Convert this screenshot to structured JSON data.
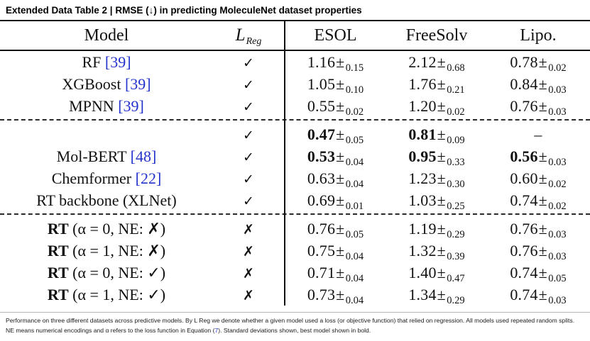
{
  "title": "Extended Data Table 2 | RMSE (↓) in predicting MoleculeNet dataset properties",
  "pm": "±",
  "link_color": "#2433cc",
  "table": {
    "headers": {
      "model": "Model",
      "reg_main": "L",
      "reg_sub": "Reg",
      "esol": "ESOL",
      "freesolv": "FreeSolv",
      "lipo": "Lipo."
    },
    "rows": [
      {
        "model": {
          "bold": "",
          "text": "RF ",
          "cite": "[39]"
        },
        "reg": "✓",
        "cells": [
          {
            "val": "1.16",
            "sub": "0.15",
            "bold": false
          },
          {
            "val": "2.12",
            "sub": "0.68",
            "bold": false
          },
          {
            "val": "0.78",
            "sub": "0.02",
            "bold": false
          }
        ]
      },
      {
        "model": {
          "bold": "",
          "text": "XGBoost ",
          "cite": "[39]"
        },
        "reg": "✓",
        "cells": [
          {
            "val": "1.05",
            "sub": "0.10",
            "bold": false
          },
          {
            "val": "1.76",
            "sub": "0.21",
            "bold": false
          },
          {
            "val": "0.84",
            "sub": "0.03",
            "bold": false
          }
        ]
      },
      {
        "model": {
          "bold": "",
          "text": "MPNN ",
          "cite": "[39]"
        },
        "reg": "✓",
        "group_end": true,
        "cells": [
          {
            "val": "0.55",
            "sub": "0.02",
            "bold": false
          },
          {
            "val": "1.20",
            "sub": "0.02",
            "bold": false
          },
          {
            "val": "0.76",
            "sub": "0.03",
            "bold": false
          }
        ]
      },
      {
        "model": {
          "bold": "",
          "text": "",
          "cite": ""
        },
        "reg": "✓",
        "cells": [
          {
            "val": "0.47",
            "sub": "0.05",
            "bold": true
          },
          {
            "val": "0.81",
            "sub": "0.09",
            "bold": true
          },
          {
            "val": "–",
            "sub": "",
            "bold": false
          }
        ]
      },
      {
        "model": {
          "bold": "",
          "text": "Mol-BERT ",
          "cite": "[48]"
        },
        "reg": "✓",
        "cells": [
          {
            "val": "0.53",
            "sub": "0.04",
            "bold": true
          },
          {
            "val": "0.95",
            "sub": "0.33",
            "bold": true
          },
          {
            "val": "0.56",
            "sub": "0.03",
            "bold": true
          }
        ]
      },
      {
        "model": {
          "bold": "",
          "text": "Chemformer ",
          "cite": "[22]"
        },
        "reg": "✓",
        "cells": [
          {
            "val": "0.63",
            "sub": "0.04",
            "bold": false
          },
          {
            "val": "1.23",
            "sub": "0.30",
            "bold": false
          },
          {
            "val": "0.60",
            "sub": "0.02",
            "bold": false
          }
        ]
      },
      {
        "model": {
          "bold": "",
          "text": "RT backbone (XLNet)",
          "cite": ""
        },
        "reg": "✓",
        "group_end": true,
        "cells": [
          {
            "val": "0.69",
            "sub": "0.01",
            "bold": false
          },
          {
            "val": "1.03",
            "sub": "0.25",
            "bold": false
          },
          {
            "val": "0.74",
            "sub": "0.02",
            "bold": false
          }
        ]
      },
      {
        "model": {
          "bold": "RT",
          "text": " (α = 0, NE: ✗)",
          "cite": ""
        },
        "reg": "✗",
        "cells": [
          {
            "val": "0.76",
            "sub": "0.05",
            "bold": false
          },
          {
            "val": "1.19",
            "sub": "0.29",
            "bold": false
          },
          {
            "val": "0.76",
            "sub": "0.03",
            "bold": false
          }
        ]
      },
      {
        "model": {
          "bold": "RT",
          "text": " (α = 1, NE: ✗)",
          "cite": ""
        },
        "reg": "✗",
        "cells": [
          {
            "val": "0.75",
            "sub": "0.04",
            "bold": false
          },
          {
            "val": "1.32",
            "sub": "0.39",
            "bold": false
          },
          {
            "val": "0.76",
            "sub": "0.03",
            "bold": false
          }
        ]
      },
      {
        "model": {
          "bold": "RT",
          "text": " (α = 0, NE: ✓)",
          "cite": ""
        },
        "reg": "✗",
        "cells": [
          {
            "val": "0.71",
            "sub": "0.04",
            "bold": false
          },
          {
            "val": "1.40",
            "sub": "0.47",
            "bold": false
          },
          {
            "val": "0.74",
            "sub": "0.05",
            "bold": false
          }
        ]
      },
      {
        "model": {
          "bold": "RT",
          "text": " (α = 1, NE: ✓)",
          "cite": ""
        },
        "reg": "✗",
        "cells": [
          {
            "val": "0.73",
            "sub": "0.04",
            "bold": false
          },
          {
            "val": "1.34",
            "sub": "0.29",
            "bold": false
          },
          {
            "val": "0.74",
            "sub": "0.03",
            "bold": false
          }
        ]
      }
    ]
  },
  "footnote": {
    "text_before_link": "Performance on three different datasets across predictive models. By L Reg we denote whether a given model used a loss (or objective function) that relied on regression. All models used repeated random splits. NE means numerical encodings and α refers to the loss function in Equation (",
    "link": "7",
    "text_after_link": "). Standard deviations shown, best model shown in bold."
  }
}
